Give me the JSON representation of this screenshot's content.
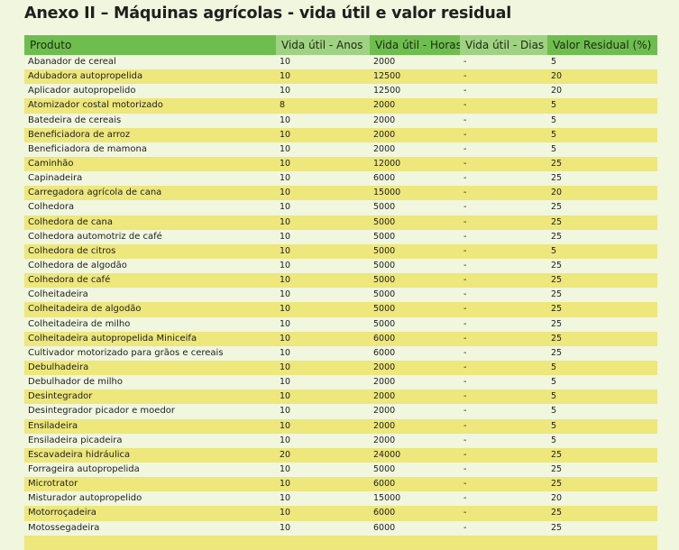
{
  "title": "Anexo II –  Máquinas agrícolas - vida útil e valor residual",
  "colors": {
    "header_dark": "#6ebe4f",
    "header_light": "#9fd282",
    "row_light": "#f1f6df",
    "row_yellow": "#ede77c"
  },
  "table": {
    "headers": [
      "Produto",
      "Vida útil - Anos",
      "Vida útil - Horas",
      "Vida útil - Dias",
      "Valor Residual (%)"
    ],
    "rows": [
      [
        "Abanador de cereal",
        "10",
        "2000",
        "-",
        "5"
      ],
      [
        "Adubadora autopropelida",
        "10",
        "12500",
        "-",
        "20"
      ],
      [
        "Aplicador autopropelido",
        "10",
        "12500",
        "-",
        "20"
      ],
      [
        "Atomizador costal motorizado",
        "8",
        "2000",
        "-",
        "5"
      ],
      [
        "Batedeira de cereais",
        "10",
        "2000",
        "-",
        "5"
      ],
      [
        "Beneficiadora de arroz",
        "10",
        "2000",
        "-",
        "5"
      ],
      [
        "Beneficiadora de mamona",
        "10",
        "2000",
        "-",
        "5"
      ],
      [
        "Caminhão",
        "10",
        "12000",
        "-",
        "25"
      ],
      [
        "Capinadeira",
        "10",
        "6000",
        "-",
        "25"
      ],
      [
        "Carregadora agrícola de cana",
        "10",
        "15000",
        "-",
        "20"
      ],
      [
        "Colhedora",
        "10",
        "5000",
        "-",
        "25"
      ],
      [
        "Colhedora de cana",
        "10",
        "5000",
        "-",
        "25"
      ],
      [
        "Colhedora automotriz de café",
        "10",
        "5000",
        "-",
        "25"
      ],
      [
        "Colhedora de citros",
        "10",
        "5000",
        "-",
        "5"
      ],
      [
        "Colhedora de algodão",
        "10",
        "5000",
        "-",
        "25"
      ],
      [
        "Colhedora de café",
        "10",
        "5000",
        "-",
        "25"
      ],
      [
        "Colheitadeira",
        "10",
        "5000",
        "-",
        "25"
      ],
      [
        "Colheitadeira de algodão",
        "10",
        "5000",
        "-",
        "25"
      ],
      [
        "Colheitadeira de milho",
        "10",
        "5000",
        "-",
        "25"
      ],
      [
        "Colheitadeira autopropelida Miniceifa",
        "10",
        "6000",
        "-",
        "25"
      ],
      [
        "Cultivador motorizado para grãos e cereais",
        "10",
        "6000",
        "-",
        "25"
      ],
      [
        "Debulhadeira",
        "10",
        "2000",
        "-",
        "5"
      ],
      [
        "Debulhador de milho",
        "10",
        "2000",
        "-",
        "5"
      ],
      [
        "Desintegrador",
        "10",
        "2000",
        "-",
        "5"
      ],
      [
        "Desintegrador picador e moedor",
        "10",
        "2000",
        "-",
        "5"
      ],
      [
        "Ensiladeira",
        "10",
        "2000",
        "-",
        "5"
      ],
      [
        "Ensiladeira picadeira",
        "10",
        "2000",
        "-",
        "5"
      ],
      [
        "Escavadeira hidráulica",
        "20",
        "24000",
        "-",
        "25"
      ],
      [
        "Forrageira autopropelida",
        "10",
        "5000",
        "-",
        "25"
      ],
      [
        "Microtrator",
        "10",
        "6000",
        "-",
        "25"
      ],
      [
        "Misturador autopropelido",
        "10",
        "15000",
        "-",
        "20"
      ],
      [
        "Motorroçadeira",
        "10",
        "6000",
        "-",
        "25"
      ],
      [
        "Motossegadeira",
        "10",
        "6000",
        "-",
        "25"
      ],
      [
        "",
        "",
        "",
        "",
        ""
      ]
    ]
  }
}
